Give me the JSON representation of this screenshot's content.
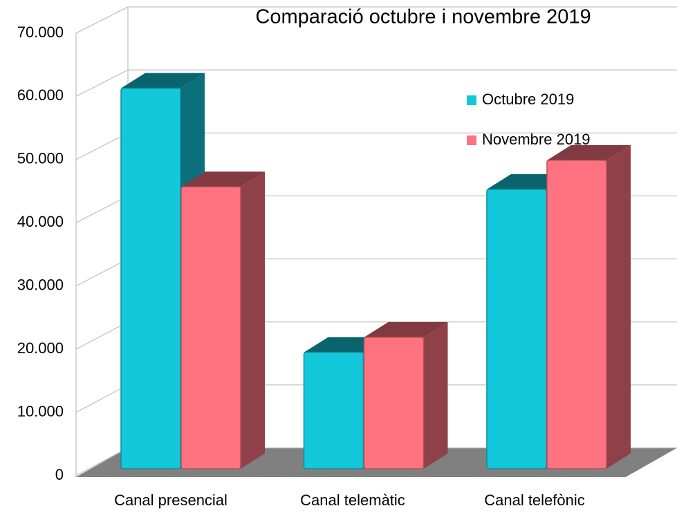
{
  "chart_data": {
    "type": "bar3d",
    "title": "Comparació octubre i novembre 2019",
    "categories": [
      "Canal presencial",
      "Canal telemàtic",
      "Canal telefònic"
    ],
    "series": [
      {
        "name": "Octubre 2019",
        "color": "#14c8dc",
        "values": [
          60200,
          18400,
          44200
        ]
      },
      {
        "name": "Novembre 2019",
        "color": "#ff7380",
        "values": [
          44600,
          20800,
          48800
        ]
      }
    ],
    "ylim": [
      0,
      70000
    ],
    "yticks": [
      0,
      {
        "value": 10000,
        "label": "10.000"
      },
      {
        "value": 20000,
        "label": "20.000"
      },
      {
        "value": 30000,
        "label": "30.000"
      },
      {
        "value": 40000,
        "label": "40.000"
      },
      {
        "value": 50000,
        "label": "50.000"
      },
      {
        "value": 60000,
        "label": "60.000"
      },
      {
        "value": 70000,
        "label": "70.000"
      }
    ],
    "grid": true
  }
}
